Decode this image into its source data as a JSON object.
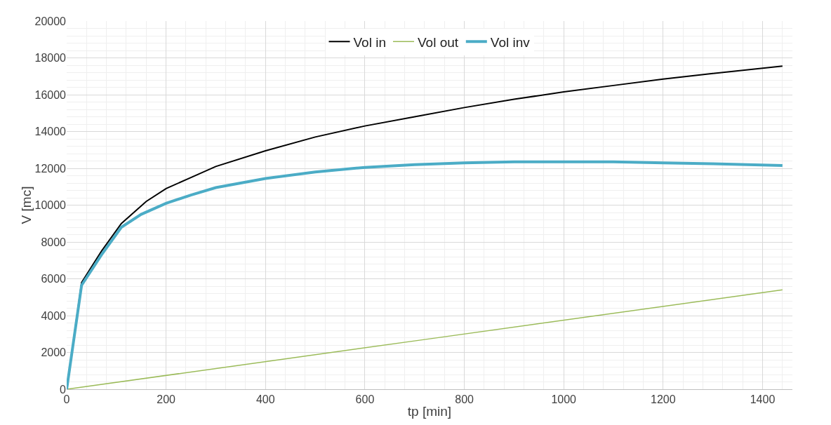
{
  "chart_data": {
    "type": "line",
    "xlabel": "tp [min]",
    "ylabel": "V [mc]",
    "xlim": [
      0,
      1460
    ],
    "xticks": [
      0,
      200,
      400,
      600,
      800,
      1000,
      1200,
      1400
    ],
    "ylim": [
      0,
      20000
    ],
    "yticks": [
      0,
      2000,
      4000,
      6000,
      8000,
      10000,
      12000,
      14000,
      16000,
      18000,
      20000
    ],
    "grid": true,
    "legend": "top",
    "marker": "none",
    "line_style": "solid",
    "series": [
      {
        "name": "Vol in",
        "color": "#000000",
        "x": [
          0,
          30,
          70,
          110,
          160,
          200,
          250,
          300,
          400,
          500,
          600,
          700,
          800,
          900,
          1000,
          1100,
          1200,
          1300,
          1440
        ],
        "values": [
          0,
          5800,
          7500,
          9000,
          10200,
          10900,
          11500,
          12100,
          12950,
          13700,
          14300,
          14800,
          15300,
          15750,
          16150,
          16500,
          16850,
          17150,
          17550
        ]
      },
      {
        "name": "Vol out",
        "color": "#9bbb59",
        "x": [
          0,
          720,
          1440
        ],
        "values": [
          0,
          2700,
          5400
        ]
      },
      {
        "name": "Vol inv",
        "color": "#4bacc6",
        "x": [
          0,
          30,
          70,
          110,
          150,
          200,
          250,
          300,
          400,
          500,
          600,
          700,
          800,
          900,
          1000,
          1100,
          1200,
          1300,
          1440
        ],
        "values": [
          0,
          5650,
          7300,
          8800,
          9500,
          10100,
          10550,
          10950,
          11450,
          11800,
          12050,
          12200,
          12300,
          12350,
          12350,
          12350,
          12300,
          12250,
          12150
        ]
      }
    ]
  }
}
